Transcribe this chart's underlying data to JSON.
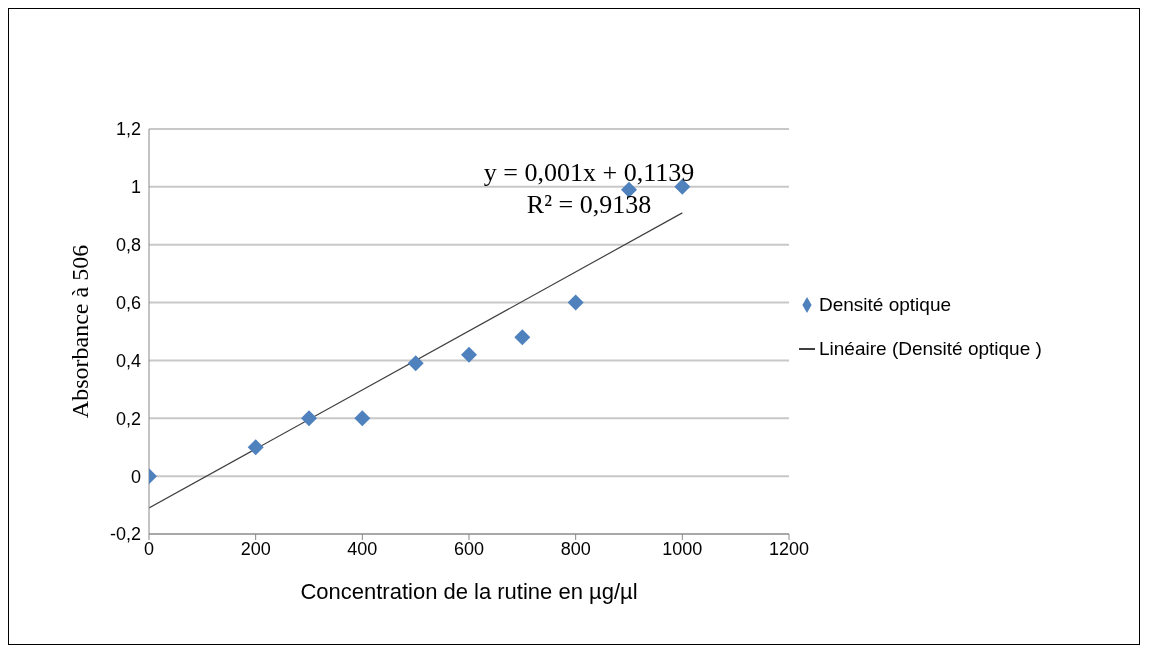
{
  "chart_data": {
    "type": "scatter",
    "xlabel": "Concentration de la rutine en µg/µl",
    "ylabel": "Absorbance à 506",
    "annotations": [
      "y = 0,001x + 0,1139",
      "R² = 0,9138"
    ],
    "series": [
      {
        "name": "Densité optique",
        "color": "#4f81bd",
        "marker": "diamond",
        "x": [
          0,
          200,
          300,
          400,
          500,
          600,
          700,
          800,
          900,
          1000
        ],
        "values": [
          0,
          0.1,
          0.2,
          0.2,
          0.39,
          0.42,
          0.48,
          0.6,
          0.99,
          1.0
        ]
      },
      {
        "name": "Linéaire (Densité optique )",
        "type": "line",
        "color": "#404040",
        "marker": "none",
        "x": [
          0,
          1000
        ],
        "values": [
          -0.11,
          0.91
        ]
      }
    ],
    "xlim": [
      0,
      1200
    ],
    "xticks": [
      0,
      200,
      400,
      600,
      800,
      1000,
      1200
    ],
    "ylim": [
      -0.2,
      1.2
    ],
    "yticks": [
      {
        "value": -0.2,
        "label": "-0,2"
      },
      0,
      {
        "value": 0.2,
        "label": "0,2"
      },
      {
        "value": 0.4,
        "label": "0,4"
      },
      {
        "value": 0.6,
        "label": "0,6"
      },
      {
        "value": 0.8,
        "label": "0,8"
      },
      1,
      {
        "value": 1.2,
        "label": "1,2"
      }
    ],
    "grid": "y",
    "legend": "right"
  }
}
